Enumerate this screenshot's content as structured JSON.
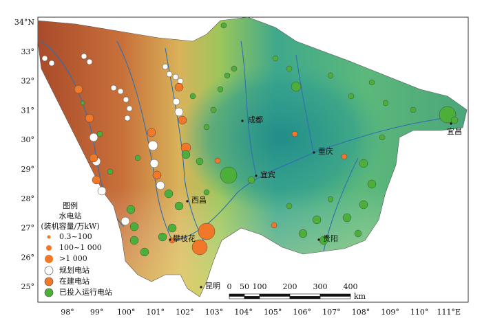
{
  "map": {
    "lat_labels": [
      "34°N",
      "33°",
      "32°",
      "31°",
      "30°",
      "29°",
      "28°",
      "27°",
      "26°",
      "25°"
    ],
    "lon_labels": [
      "98°",
      "99°",
      "100°",
      "101°",
      "102°",
      "103°",
      "104°",
      "105°",
      "106°",
      "107°",
      "108°",
      "109°",
      "110°",
      "111°E"
    ],
    "cities": [
      "成都",
      "重庆",
      "宜宾",
      "西昌",
      "攀枝花",
      "贵阳",
      "昆明",
      "宜昌"
    ],
    "legend": {
      "title": "图例",
      "subtitle": "水电站",
      "unit": "(装机容量/万kW)",
      "sizes": [
        "0.3~100",
        "100~1 000",
        ">1 000"
      ],
      "types": [
        "规划电站",
        "在建电站",
        "已投入运行电站"
      ]
    },
    "scale": {
      "labels": [
        "0",
        "50",
        "100",
        "200",
        "300",
        "400"
      ],
      "unit": "km"
    }
  }
}
